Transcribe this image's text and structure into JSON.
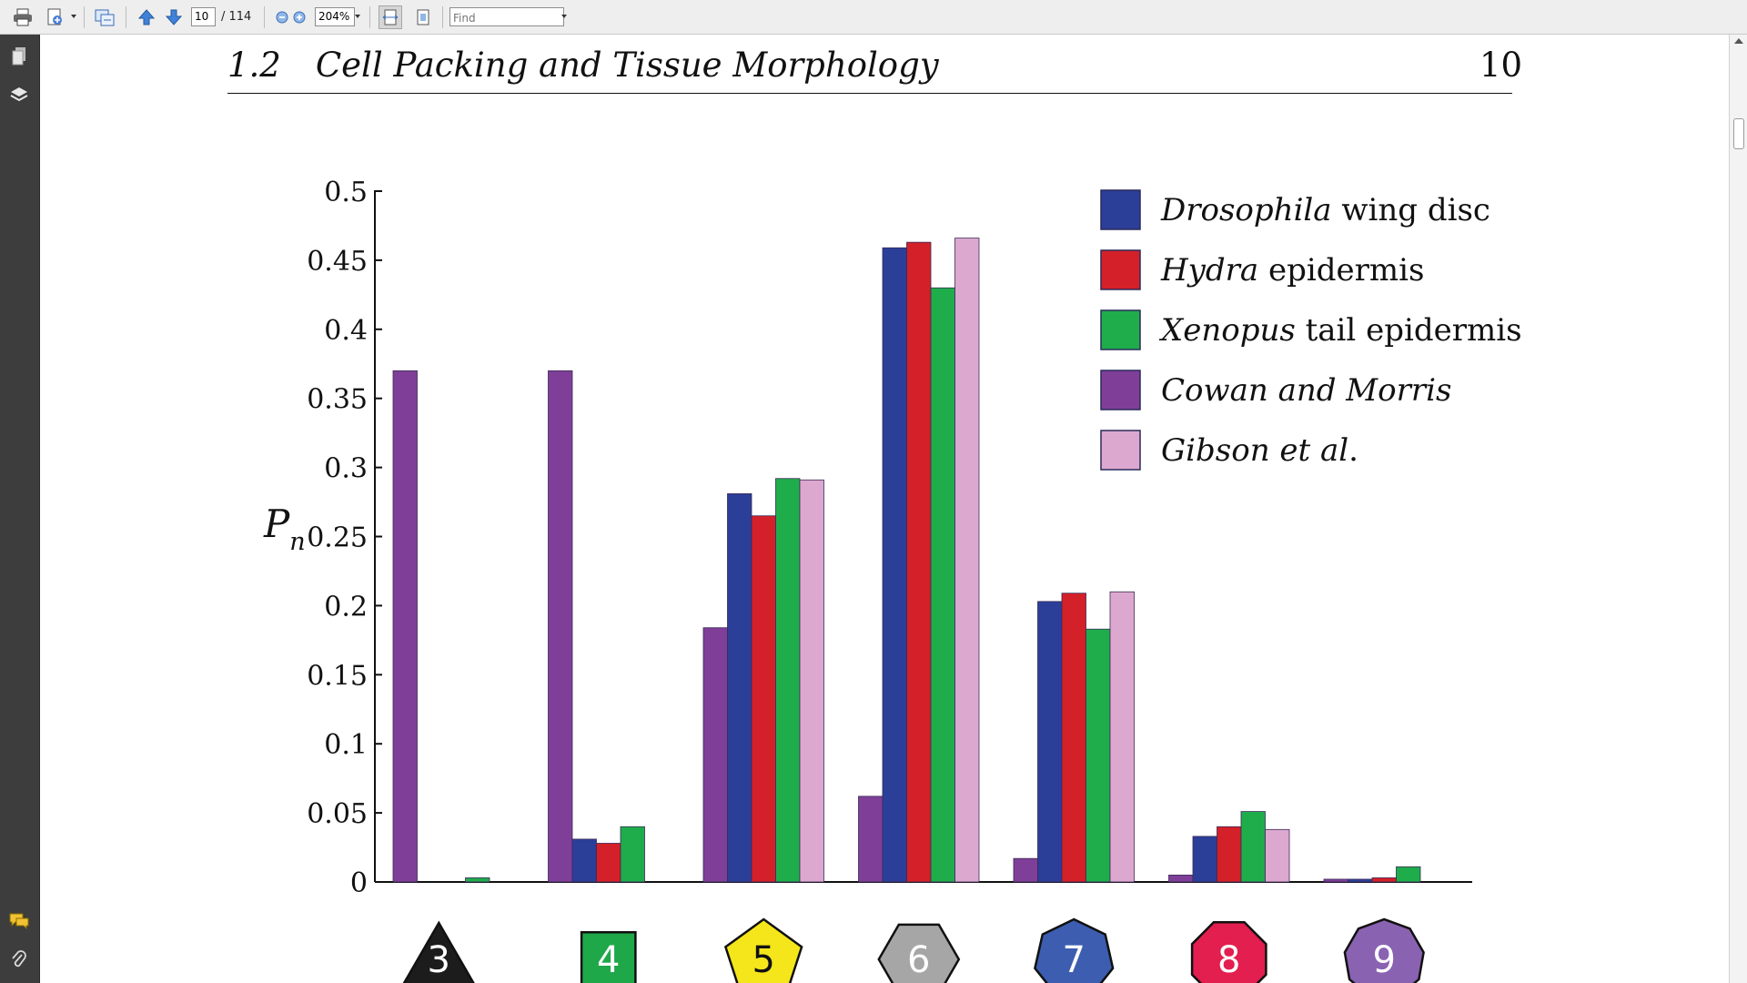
{
  "toolbar": {
    "page_current": "10",
    "page_total": "/ 114",
    "zoom": "204%",
    "find_placeholder": "Find",
    "icons": [
      "print-icon",
      "export-icon",
      "share-icon",
      "previous-page-icon",
      "next-page-icon",
      "zoom-out-icon",
      "zoom-in-icon",
      "fit-width-icon",
      "fit-page-icon"
    ]
  },
  "sidebar": {
    "icons": [
      "pages-icon",
      "layers-icon",
      "comments-icon",
      "attachments-icon"
    ]
  },
  "document": {
    "section_number": "1.2",
    "section_title": "Cell Packing and Tissue Morphology",
    "page_number": "10"
  },
  "chart_data": {
    "type": "bar",
    "ylabel": "Pn",
    "ylim": [
      0,
      0.5
    ],
    "yticks": [
      "0",
      "0.05",
      "0.1",
      "0.15",
      "0.2",
      "0.25",
      "0.3",
      "0.35",
      "0.4",
      "0.45",
      "0.5"
    ],
    "categories": [
      "3",
      "4",
      "5",
      "6",
      "7",
      "8",
      "9"
    ],
    "category_shapes": [
      "triangle",
      "square",
      "pentagon",
      "hexagon",
      "heptagon",
      "octagon",
      "nonagon"
    ],
    "category_colors": [
      "#1c1c1c",
      "#1fa84a",
      "#f5e61c",
      "#a6a6a6",
      "#3c5db0",
      "#e21f4f",
      "#8a62b2"
    ],
    "legend_position": "top-right",
    "series": [
      {
        "name_italic": "",
        "name_rest": "Cowan and Morris",
        "italic_all": true,
        "color": "#7f3f98",
        "values": [
          0.37,
          0.37,
          0.184,
          0.062,
          0.017,
          0.005,
          0.002
        ]
      },
      {
        "name_italic": "Drosophila",
        "name_rest": " wing disc",
        "italic_all": false,
        "color": "#2b3f99",
        "values": [
          0,
          0.031,
          0.281,
          0.459,
          0.203,
          0.033,
          0.002
        ]
      },
      {
        "name_italic": "Hydra",
        "name_rest": " epidermis",
        "italic_all": false,
        "color": "#d42028",
        "values": [
          0,
          0.028,
          0.265,
          0.463,
          0.209,
          0.04,
          0.003
        ]
      },
      {
        "name_italic": "Xenopus",
        "name_rest": " tail epidermis",
        "italic_all": false,
        "color": "#1fad4c",
        "values": [
          0.003,
          0.04,
          0.292,
          0.43,
          0.183,
          0.051,
          0.011
        ]
      },
      {
        "name_italic": "Gibson et al",
        "name_rest": ".",
        "italic_all": false,
        "color": "#dda8cf",
        "values": [
          0,
          0,
          0.291,
          0.466,
          0.21,
          0.038,
          0
        ]
      }
    ]
  }
}
